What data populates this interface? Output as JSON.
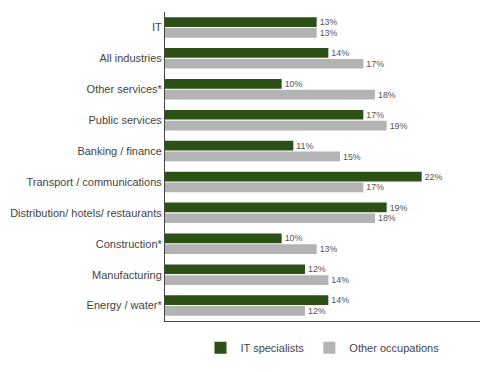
{
  "chart_data": {
    "type": "bar",
    "orientation": "horizontal",
    "categories": [
      "IT",
      "All industries",
      "Other services*",
      "Public services",
      "Banking / finance",
      "Transport / communications",
      "Distribution/ hotels/ restaurants",
      "Construction*",
      "Manufacturing",
      "Energy / water*"
    ],
    "series": [
      {
        "name": "IT specialists",
        "color": "#2d5016",
        "values": [
          13,
          14,
          10,
          17,
          11,
          22,
          19,
          10,
          12,
          14
        ],
        "value_labels": [
          "13%",
          "14%",
          "10%",
          "17%",
          "11%",
          "22%",
          "19%",
          "10%",
          "12%",
          "14%"
        ]
      },
      {
        "name": "Other occupations",
        "color": "#b3b3b3",
        "values": [
          13,
          17,
          18,
          19,
          15,
          17,
          18,
          13,
          14,
          12
        ],
        "value_labels": [
          "13%",
          "17%",
          "18%",
          "19%",
          "15%",
          "17%",
          "18%",
          "13%",
          "14%",
          "12%"
        ]
      }
    ],
    "xlim": [
      0,
      27
    ],
    "tick_labels": "y",
    "data_labels": true,
    "grid": false,
    "legend": "bottom"
  }
}
